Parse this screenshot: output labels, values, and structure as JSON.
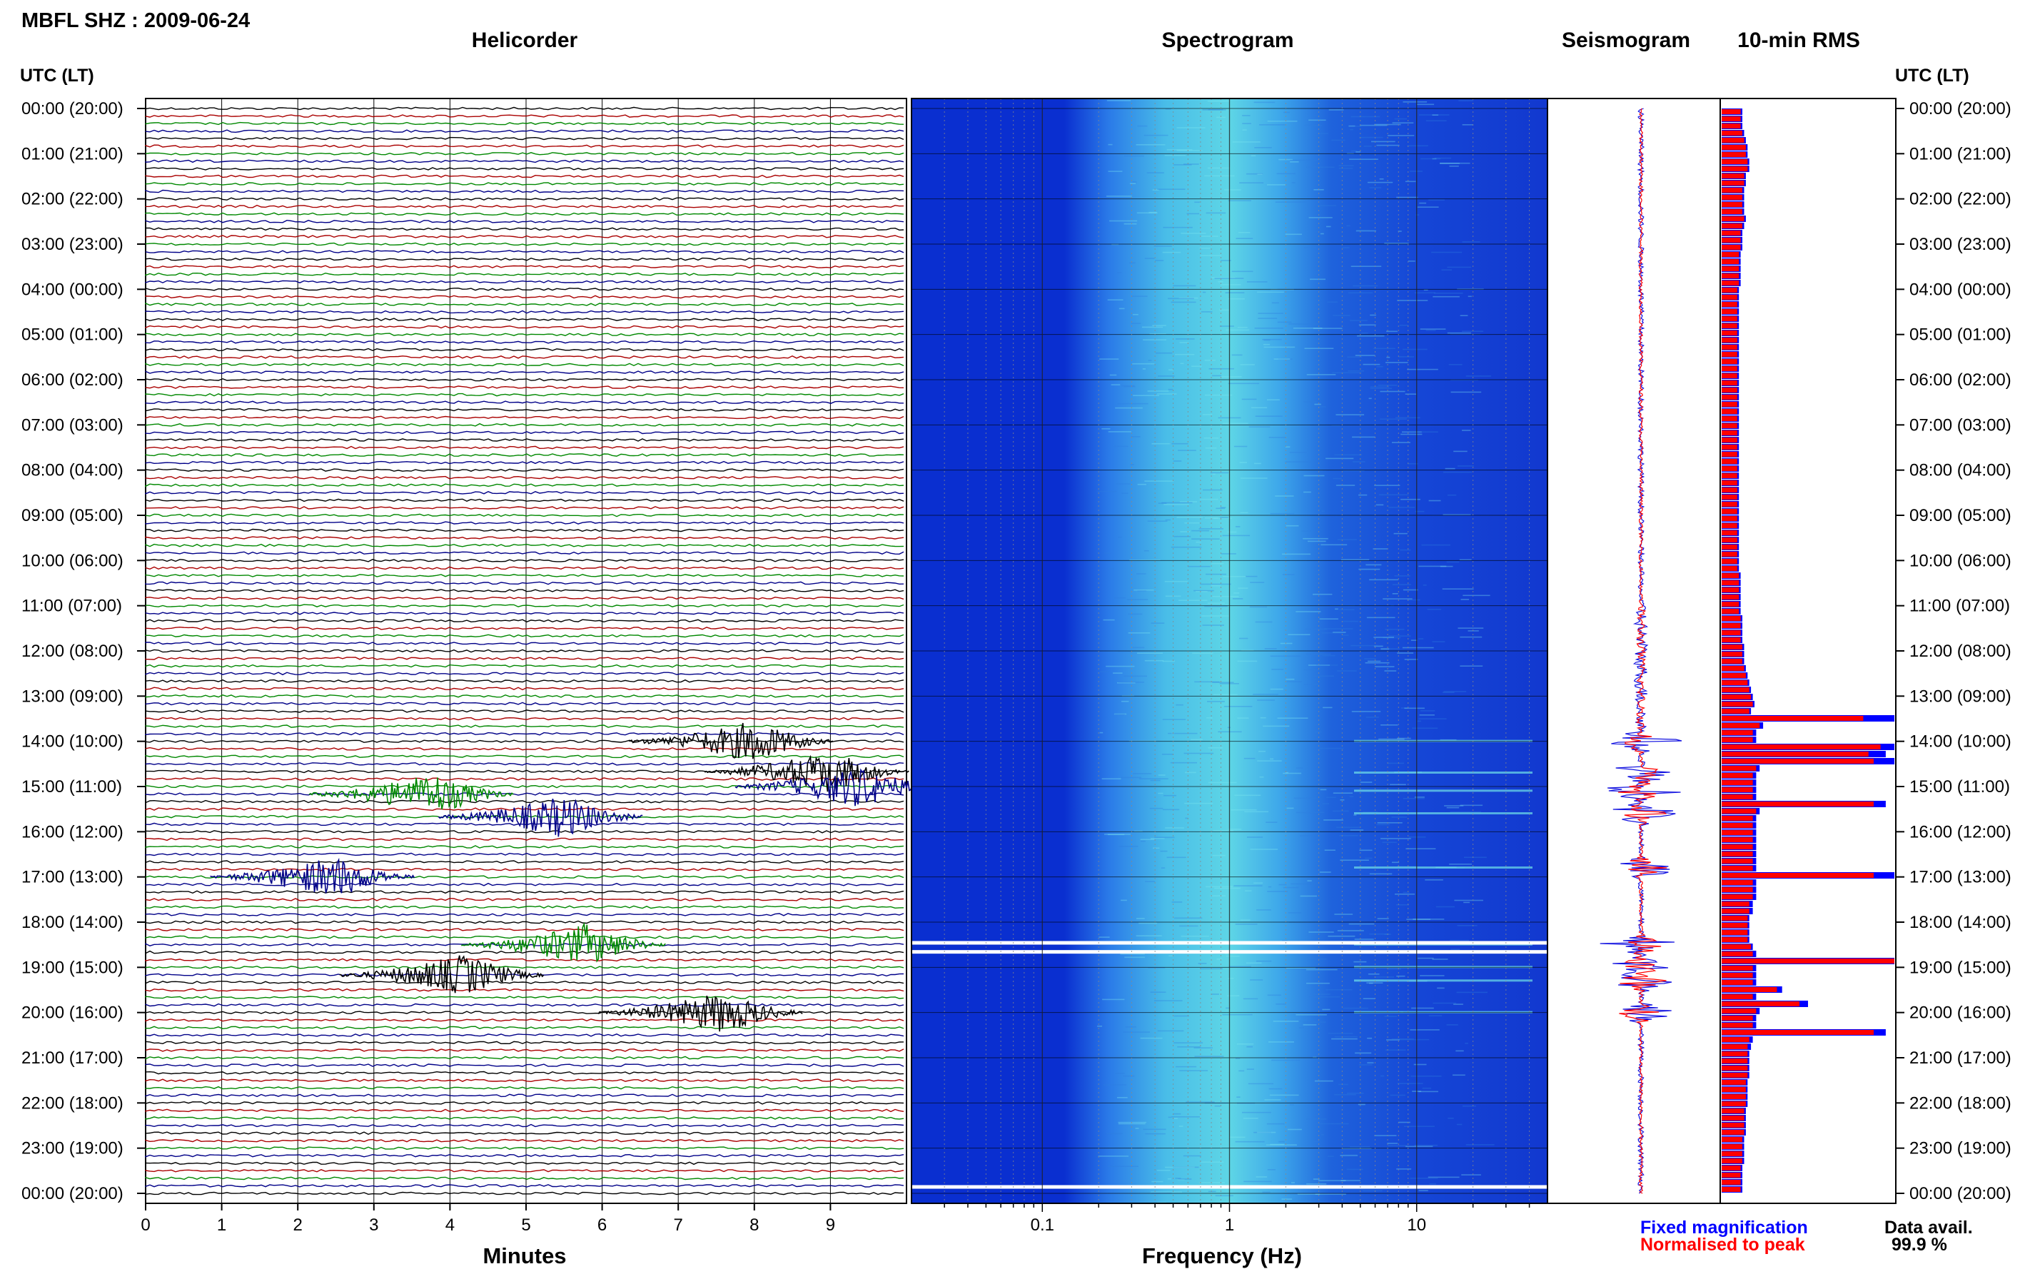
{
  "title": "MBFL SHZ : 2009-06-24",
  "panels": {
    "helicorder": "Helicorder",
    "spectrogram": "Spectrogram",
    "seismogram": "Seismogram",
    "rms": "10-min RMS"
  },
  "time_axis_label": "UTC (LT)",
  "time_ticks": [
    "00:00 (20:00)",
    "01:00 (21:00)",
    "02:00 (22:00)",
    "03:00 (23:00)",
    "04:00 (00:00)",
    "05:00 (01:00)",
    "06:00 (02:00)",
    "07:00 (03:00)",
    "08:00 (04:00)",
    "09:00 (05:00)",
    "10:00 (06:00)",
    "11:00 (07:00)",
    "12:00 (08:00)",
    "13:00 (09:00)",
    "14:00 (10:00)",
    "15:00 (11:00)",
    "16:00 (12:00)",
    "17:00 (13:00)",
    "18:00 (14:00)",
    "19:00 (15:00)",
    "20:00 (16:00)",
    "21:00 (17:00)",
    "22:00 (18:00)",
    "23:00 (19:00)",
    "00:00 (20:00)"
  ],
  "legend": {
    "fixed": "Fixed magnification",
    "normalised": "Normalised to peak",
    "fixed_color": "#0000ff",
    "normalised_color": "#ff0000"
  },
  "data_availability": {
    "label": "Data avail.",
    "value": "99.9 %"
  },
  "chart_data": [
    {
      "type": "line",
      "panel": "helicorder",
      "xlabel": "Minutes",
      "x_ticks": [
        "0",
        "1",
        "2",
        "3",
        "4",
        "5",
        "6",
        "7",
        "8",
        "9"
      ],
      "xlim": [
        0,
        10
      ],
      "trace_colors": [
        "#000000",
        "#aa0000",
        "#008800",
        "#000088"
      ],
      "event_hours": [
        14.0,
        14.7,
        15.1,
        15.6,
        16.8,
        18.5,
        19.0,
        19.3,
        20.0
      ],
      "events": [
        {
          "hour": 14.0,
          "minute": 8.0,
          "color": "#000000"
        },
        {
          "hour": 14.67,
          "minute": 9.0,
          "color": "#000000"
        },
        {
          "hour": 15.0,
          "minute": 9.4,
          "color": "#000088"
        },
        {
          "hour": 15.17,
          "minute": 3.8,
          "color": "#008800"
        },
        {
          "hour": 15.67,
          "minute": 5.5,
          "color": "#000088"
        },
        {
          "hour": 17.0,
          "minute": 2.5,
          "color": "#000088"
        },
        {
          "hour": 18.5,
          "minute": 5.8,
          "color": "#008800"
        },
        {
          "hour": 19.17,
          "minute": 4.2,
          "color": "#000000"
        },
        {
          "hour": 20.0,
          "minute": 7.6,
          "color": "#000000"
        }
      ]
    },
    {
      "type": "heatmap",
      "panel": "spectrogram",
      "xlabel": "Frequency (Hz)",
      "x_scale": "log",
      "x_ticks": [
        "0.1",
        "1",
        "10"
      ],
      "xlim": [
        0.02,
        50
      ],
      "dominant_band_hz": [
        0.25,
        2.0
      ],
      "data_gaps_hours": [
        18.45,
        18.65,
        23.85
      ]
    },
    {
      "type": "line",
      "panel": "seismogram",
      "event_hours": [
        14.0,
        14.7,
        15.1,
        15.6,
        16.8,
        18.5,
        19.0,
        19.3,
        20.0
      ]
    },
    {
      "type": "bar",
      "panel": "rms",
      "orientation": "horizontal",
      "series": [
        {
          "name": "Fixed magnification",
          "values": [
            0.12,
            0.12,
            0.12,
            0.13,
            0.14,
            0.15,
            0.15,
            0.16,
            0.16,
            0.14,
            0.14,
            0.13,
            0.13,
            0.13,
            0.13,
            0.14,
            0.13,
            0.12,
            0.12,
            0.12,
            0.11,
            0.11,
            0.11,
            0.11,
            0.11,
            0.1,
            0.1,
            0.1,
            0.1,
            0.1,
            0.1,
            0.1,
            0.1,
            0.1,
            0.1,
            0.1,
            0.1,
            0.1,
            0.1,
            0.1,
            0.1,
            0.1,
            0.1,
            0.1,
            0.1,
            0.1,
            0.1,
            0.1,
            0.1,
            0.1,
            0.1,
            0.1,
            0.1,
            0.1,
            0.1,
            0.1,
            0.1,
            0.1,
            0.1,
            0.1,
            0.1,
            0.1,
            0.1,
            0.1,
            0.1,
            0.11,
            0.11,
            0.11,
            0.11,
            0.11,
            0.11,
            0.12,
            0.12,
            0.12,
            0.12,
            0.13,
            0.13,
            0.13,
            0.14,
            0.15,
            0.16,
            0.17,
            0.18,
            0.19,
            0.17,
            1.0,
            0.24,
            0.2,
            0.2,
            1.0,
            0.95,
            1.0,
            0.22,
            0.2,
            0.2,
            0.2,
            0.2,
            0.95,
            0.22,
            0.2,
            0.2,
            0.2,
            0.2,
            0.2,
            0.2,
            0.2,
            0.2,
            1.0,
            0.2,
            0.2,
            0.2,
            0.18,
            0.18,
            0.16,
            0.16,
            0.16,
            0.16,
            0.18,
            0.2,
            1.0,
            0.2,
            0.2,
            0.2,
            0.35,
            0.2,
            0.5,
            0.22,
            0.2,
            0.2,
            0.95,
            0.18,
            0.17,
            0.16,
            0.16,
            0.16,
            0.16,
            0.15,
            0.15,
            0.15,
            0.15,
            0.14,
            0.14,
            0.14,
            0.14,
            0.13,
            0.13,
            0.13,
            0.13,
            0.12,
            0.12,
            0.12,
            0.12
          ]
        },
        {
          "name": "Normalised to peak",
          "values": [
            0.11,
            0.11,
            0.11,
            0.12,
            0.13,
            0.14,
            0.14,
            0.15,
            0.15,
            0.13,
            0.13,
            0.12,
            0.12,
            0.12,
            0.12,
            0.13,
            0.12,
            0.11,
            0.11,
            0.11,
            0.1,
            0.1,
            0.1,
            0.1,
            0.1,
            0.09,
            0.09,
            0.09,
            0.09,
            0.09,
            0.09,
            0.09,
            0.09,
            0.09,
            0.09,
            0.09,
            0.09,
            0.09,
            0.09,
            0.09,
            0.09,
            0.09,
            0.09,
            0.09,
            0.09,
            0.09,
            0.09,
            0.09,
            0.09,
            0.09,
            0.09,
            0.09,
            0.09,
            0.09,
            0.09,
            0.09,
            0.09,
            0.09,
            0.09,
            0.09,
            0.09,
            0.09,
            0.09,
            0.09,
            0.09,
            0.1,
            0.1,
            0.1,
            0.1,
            0.1,
            0.1,
            0.11,
            0.11,
            0.11,
            0.11,
            0.12,
            0.12,
            0.12,
            0.13,
            0.14,
            0.15,
            0.16,
            0.17,
            0.18,
            0.16,
            0.82,
            0.22,
            0.18,
            0.18,
            0.92,
            0.85,
            0.88,
            0.2,
            0.18,
            0.18,
            0.18,
            0.18,
            0.88,
            0.2,
            0.18,
            0.18,
            0.18,
            0.18,
            0.18,
            0.18,
            0.18,
            0.18,
            0.88,
            0.18,
            0.18,
            0.18,
            0.16,
            0.16,
            0.15,
            0.15,
            0.15,
            0.15,
            0.17,
            0.18,
            1.0,
            0.18,
            0.18,
            0.18,
            0.32,
            0.18,
            0.45,
            0.2,
            0.18,
            0.18,
            0.88,
            0.16,
            0.15,
            0.15,
            0.15,
            0.15,
            0.15,
            0.14,
            0.14,
            0.14,
            0.14,
            0.13,
            0.13,
            0.13,
            0.13,
            0.12,
            0.12,
            0.12,
            0.12,
            0.11,
            0.11,
            0.11,
            0.11
          ]
        }
      ]
    }
  ]
}
